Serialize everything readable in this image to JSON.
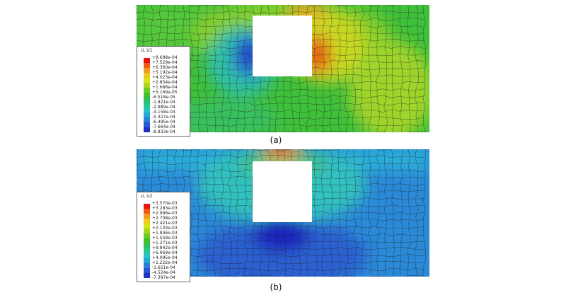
{
  "figures": [
    {
      "caption": "(a)",
      "legend_title": "U, U1",
      "legend_values": [
        "+8.698e-04",
        "+7.529e-04",
        "+6.360e-04",
        "+5.192e-04",
        "+4.023e-04",
        "+2.854e-04",
        "+1.686e-04",
        "+5.169e-05",
        "-6.518e-05",
        "-1.821e-04",
        "-2.989e-04",
        "-4.158e-04",
        "-5.327e-04",
        "-6.495e-04",
        "-7.664e-04",
        "-8.833e-04"
      ]
    },
    {
      "caption": "(b)",
      "legend_title": "U, U2",
      "legend_values": [
        "+3.570e-03",
        "+3.283e-03",
        "+2.996e-03",
        "+2.708e-03",
        "+2.421e-03",
        "+2.133e-03",
        "+1.846e-03",
        "+1.559e-03",
        "+1.271e-03",
        "+9.842e-04",
        "+6.969e-04",
        "+4.095e-04",
        "+1.222e-04",
        "-1.651e-04",
        "-4.524e-04",
        "-7.397e-04"
      ]
    }
  ],
  "colormap": [
    "#e8140c",
    "#f0561a",
    "#f39a1e",
    "#efc91c",
    "#d9e21a",
    "#a6d81c",
    "#6ccb22",
    "#3cc02c",
    "#2fbf5c",
    "#2cc38e",
    "#27c3bf",
    "#21a8d8",
    "#2a7fd8",
    "#2a55d0",
    "#2231c4",
    "#1a10b8"
  ]
}
